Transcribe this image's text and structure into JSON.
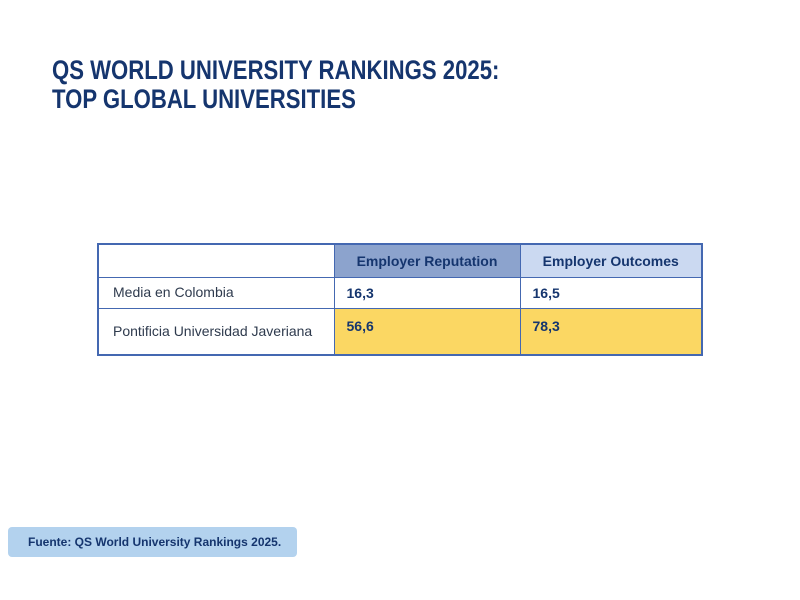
{
  "title": {
    "line1": "QS WORLD UNIVERSITY RANKINGS 2025:",
    "line2": "TOP GLOBAL UNIVERSITIES"
  },
  "table": {
    "headers": [
      "",
      "Employer Reputation",
      "Employer Outcomes"
    ],
    "rows": [
      {
        "label": "Media en Colombia",
        "values": [
          "16,3",
          "16,5"
        ],
        "highlighted": false
      },
      {
        "label": "Pontificia Universidad Javeriana",
        "values": [
          "56,6",
          "78,3"
        ],
        "highlighted": true
      }
    ]
  },
  "source": {
    "text": "Fuente: QS World University Rankings 2025."
  },
  "colors": {
    "title_navy": "#15356e",
    "header_blue": "#8ca3cd",
    "header_light_blue": "#cbd9f1",
    "border_blue": "#4468b1",
    "highlight_yellow": "#fbd763",
    "source_badge_bg": "#b3d2ee"
  },
  "chart_data": {
    "type": "table",
    "title": "QS World University Rankings 2025: Top Global Universities",
    "columns": [
      "",
      "Employer Reputation",
      "Employer Outcomes"
    ],
    "rows": [
      [
        "Media en Colombia",
        16.3,
        16.5
      ],
      [
        "Pontificia Universidad Javeriana",
        56.6,
        78.3
      ]
    ],
    "notes": "Pontificia Universidad Javeriana row values highlighted in yellow; source: QS World University Rankings 2025"
  }
}
